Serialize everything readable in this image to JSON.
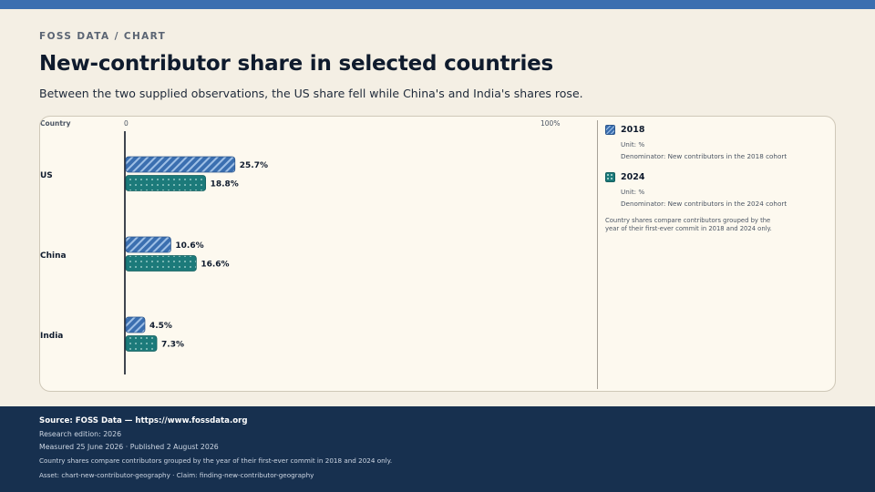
{
  "header": {
    "kicker": "FOSS DATA / CHART",
    "title": "New-contributor share in selected countries",
    "subtitle": "Between the two supplied observations, the US share fell while China's and India's shares rose."
  },
  "chart_data": {
    "type": "bar",
    "orientation": "horizontal",
    "axis_column_label": "Country",
    "axis_min_label": "0",
    "axis_max_label": "100%",
    "xlim": [
      0,
      100
    ],
    "categories": [
      "US",
      "China",
      "India"
    ],
    "series": [
      {
        "name": "2018",
        "values": [
          25.7,
          10.6,
          4.5
        ],
        "labels": [
          "25.7%",
          "10.6%",
          "4.5%"
        ],
        "color": "#3b6fb0",
        "pattern": "diagonal-stripes"
      },
      {
        "name": "2024",
        "values": [
          18.8,
          16.6,
          7.3
        ],
        "labels": [
          "18.8%",
          "16.6%",
          "7.3%"
        ],
        "color": "#1c7a7a",
        "pattern": "dots"
      }
    ],
    "grid": false,
    "legend_position": "right"
  },
  "legend": {
    "items": [
      {
        "year": "2018",
        "unit": "Unit: %",
        "denominator": "Denominator: New contributors in the 2018 cohort",
        "color": "#3b6fb0"
      },
      {
        "year": "2024",
        "unit": "Unit: %",
        "denominator": "Denominator: New contributors in the 2024 cohort",
        "color": "#1c7a7a"
      }
    ],
    "note": "Country shares compare contributors grouped by the year of their first-ever commit in 2018 and 2024 only."
  },
  "footer": {
    "source": "Source: FOSS Data — https://www.fossdata.org",
    "edition": "Research edition: 2026",
    "dates": "Measured 25 June 2026 · Published 2 August 2026",
    "note": "Country shares compare contributors grouped by the year of their first-ever commit in 2018 and 2024 only.",
    "asset": "Asset: chart-new-contributor-geography · Claim: finding-new-contributor-geography"
  },
  "colors": {
    "accent_bar": "#3b6fb0",
    "footer_bg": "#17304f",
    "series_2018": "#3b6fb0",
    "series_2024": "#1c7a7a"
  }
}
